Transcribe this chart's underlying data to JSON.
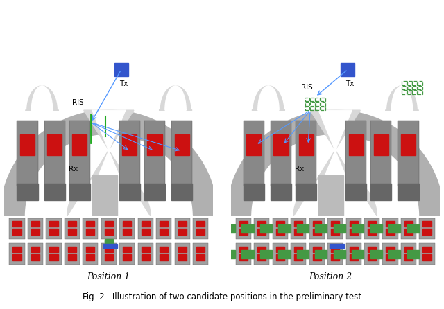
{
  "fig_width": 6.4,
  "fig_height": 4.46,
  "dpi": 100,
  "bg_color": "#ffffff",
  "caption": "Fig. 2   Illustration of two candidate positions in the preliminary test",
  "label1": "Position 1",
  "label2": "Position 2",
  "label_fontsize": 9,
  "caption_fontsize": 8.5,
  "outer_arch_color": "#b0b0b0",
  "inner_arch_color": "#d8d8d8",
  "window_color": "#ffffff",
  "seat_color": "#888888",
  "red_color": "#cc1111",
  "blue_color": "#3355cc",
  "green_color": "#449944",
  "arrow_color": "#5599ff",
  "floor_color": "#cccccc"
}
